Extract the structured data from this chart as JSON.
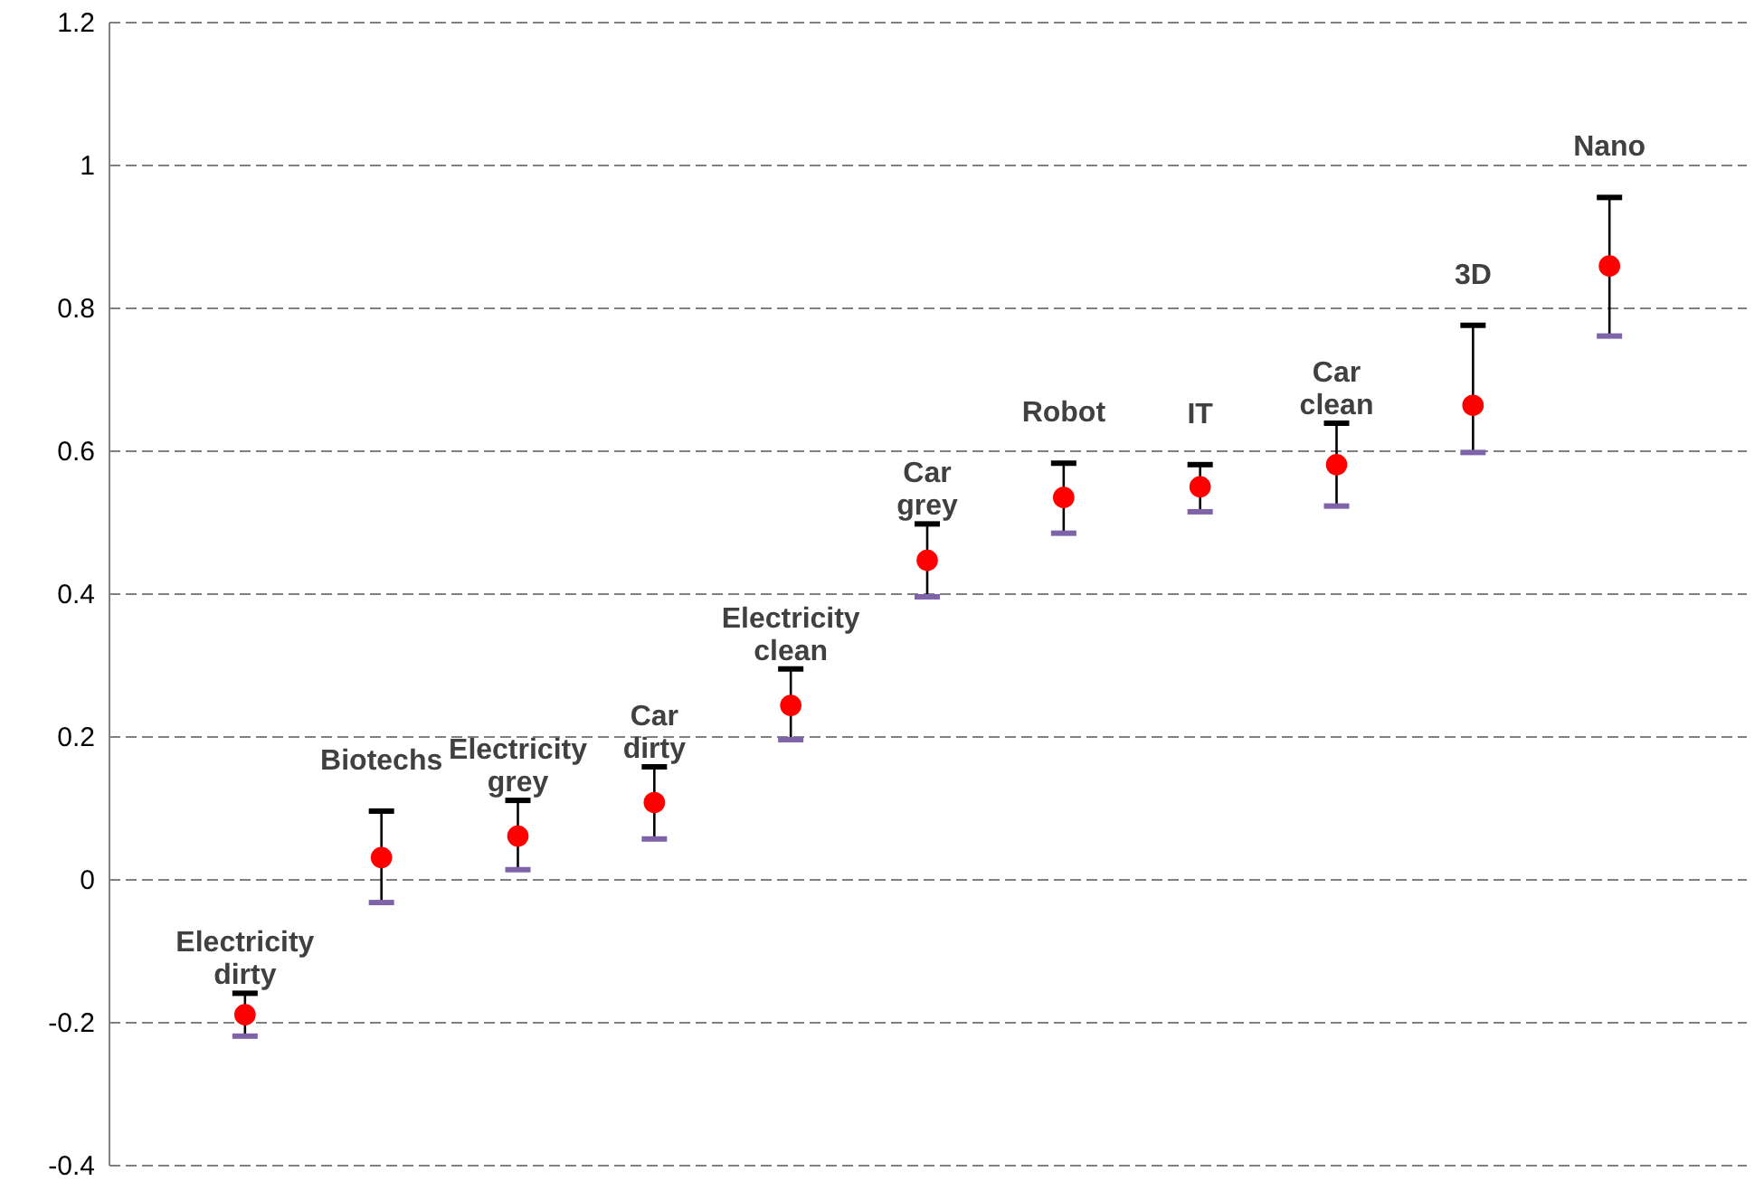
{
  "chart_data": {
    "type": "scatter",
    "categories": [
      "Electricity dirty",
      "Biotechs",
      "Electricity grey",
      "Car dirty",
      "Electricity clean",
      "Car grey",
      "Robot",
      "IT",
      "Car clean",
      "3D",
      "Nano"
    ],
    "series": [
      {
        "color": "#ff0000",
        "values": [
          -0.19,
          0.03,
          0.06,
          0.107,
          0.243,
          0.446,
          0.534,
          0.549,
          0.58,
          0.663,
          0.858
        ],
        "errors": [
          [
            -0.22,
            -0.16
          ],
          [
            -0.033,
            0.095
          ],
          [
            0.013,
            0.11
          ],
          [
            0.056,
            0.157
          ],
          [
            0.195,
            0.294
          ],
          [
            0.395,
            0.497
          ],
          [
            0.484,
            0.582
          ],
          [
            0.514,
            0.58
          ],
          [
            0.522,
            0.638
          ],
          [
            0.597,
            0.775
          ],
          [
            0.76,
            0.954
          ]
        ]
      }
    ],
    "ylim": [
      -0.4,
      1.2
    ],
    "yticks": [
      -0.4,
      -0.2,
      0,
      0.2,
      0.4,
      0.6,
      0.8,
      1,
      1.2
    ],
    "grid": "y",
    "marker": "circle",
    "tick_labels": "y"
  }
}
